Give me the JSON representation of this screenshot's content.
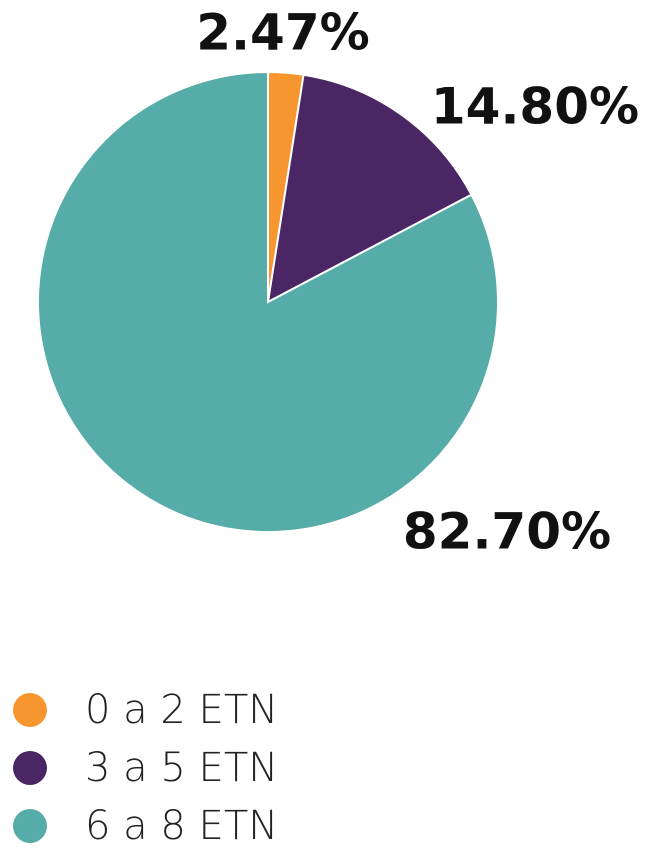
{
  "chart_data": {
    "type": "pie",
    "categories": [
      "0 a 2 ETN",
      "3 a 5 ETN",
      "6 a 8 ETN"
    ],
    "values": [
      2.47,
      14.8,
      82.7
    ],
    "value_labels": [
      "2.47%",
      "14.80%",
      "82.70%"
    ],
    "colors": [
      "#f7962f",
      "#4a2764",
      "#55aca8"
    ]
  }
}
